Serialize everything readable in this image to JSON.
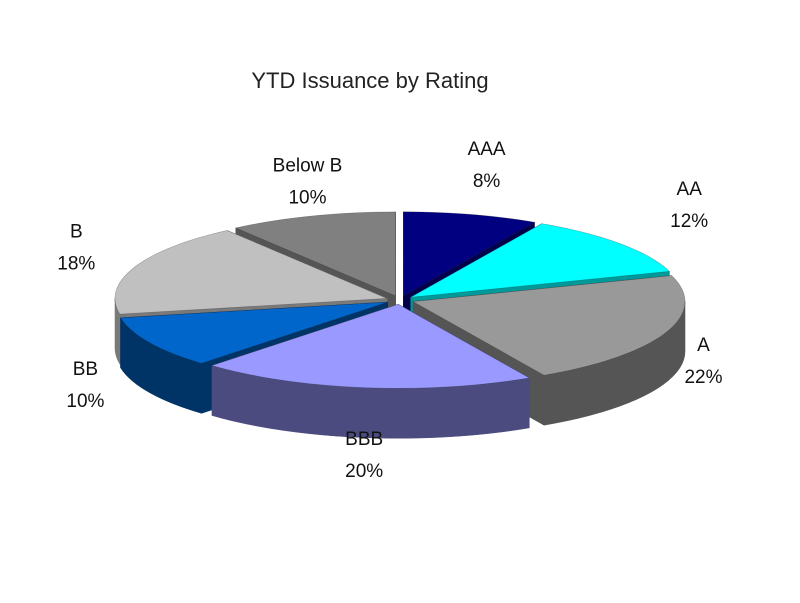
{
  "chart_data": {
    "type": "pie",
    "title": "YTD Issuance by Rating",
    "categories": [
      "AAA",
      "AA",
      "A",
      "BBB",
      "BB",
      "B",
      "Below B"
    ],
    "values": [
      8,
      12,
      22,
      20,
      10,
      18,
      10
    ],
    "value_labels": [
      "8%",
      "12%",
      "22%",
      "20%",
      "10%",
      "18%",
      "10%"
    ],
    "unit": "%",
    "style": "3d-exploded",
    "legend": "none",
    "colors": [
      "#000080",
      "#00FFFF",
      "#999999",
      "#9999FF",
      "#0066CC",
      "#C0C0C0",
      "#808080"
    ],
    "side_colors": [
      "#00004d",
      "#009999",
      "#555555",
      "#4b4b7f",
      "#003366",
      "#7a7a7a",
      "#555555"
    ]
  }
}
